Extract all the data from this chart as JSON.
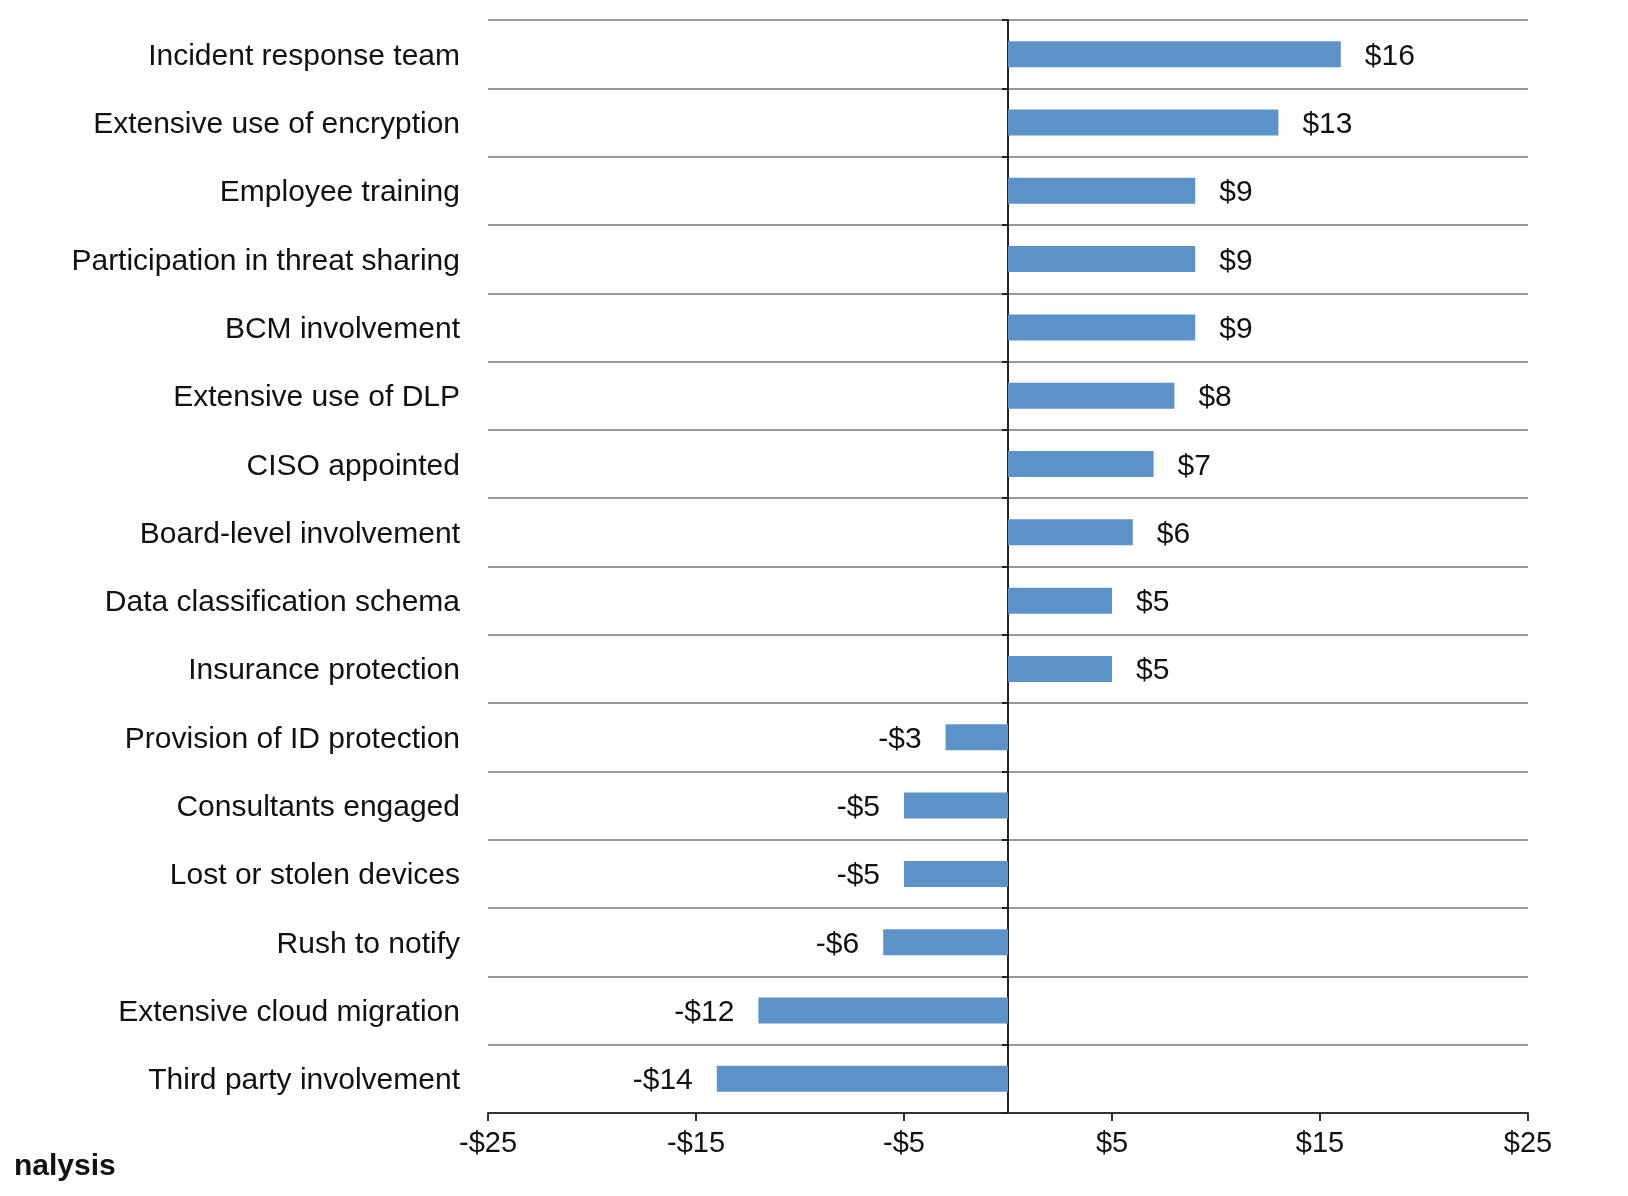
{
  "chart_data": {
    "type": "bar",
    "orientation": "horizontal",
    "categories": [
      "Incident response team",
      "Extensive use of encryption",
      "Employee training",
      "Participation in threat sharing",
      "BCM involvement",
      "Extensive use of DLP",
      "CISO appointed",
      "Board-level involvement",
      "Data classification schema",
      "Insurance protection",
      "Provision of ID protection",
      "Consultants engaged",
      "Lost or stolen devices",
      "Rush to notify",
      "Extensive cloud migration",
      "Third party involvement"
    ],
    "values": [
      16,
      13,
      9,
      9,
      9,
      8,
      7,
      6,
      5,
      5,
      -3,
      -5,
      -5,
      -6,
      -12,
      -14
    ],
    "value_labels": [
      "$16",
      "$13",
      "$9",
      "$9",
      "$9",
      "$8",
      "$7",
      "$6",
      "$5",
      "$5",
      "-$3",
      "-$5",
      "-$5",
      "-$6",
      "-$12",
      "-$14"
    ],
    "color": "#5b93c8",
    "xlim": [
      -25,
      25
    ],
    "xticks": [
      {
        "value": -25,
        "label": "-$25"
      },
      {
        "value": -15,
        "label": "-$15"
      },
      {
        "value": -5,
        "label": "-$5"
      },
      {
        "value": 5,
        "label": "$5"
      },
      {
        "value": 15,
        "label": "$15"
      },
      {
        "value": 25,
        "label": "$25"
      }
    ],
    "grid": "y",
    "annotations": [
      "nalysis"
    ]
  }
}
